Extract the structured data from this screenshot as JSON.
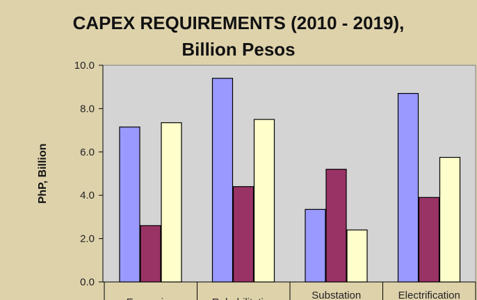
{
  "chart_data": {
    "type": "bar",
    "title": [
      "CAPEX REQUIREMENTS (2010 - 2019),",
      "Billion Pesos"
    ],
    "ylabel": "PhP, Billion",
    "xlabel": "",
    "ylim": [
      0,
      10
    ],
    "yticks": [
      "0.0",
      "2.0",
      "4.0",
      "6.0",
      "8.0",
      "10.0"
    ],
    "categories": [
      "Expansion",
      "Rehabilitation",
      "Substation",
      "Electrification"
    ],
    "series": [
      {
        "values": [
          7.15,
          9.4,
          3.35,
          8.7
        ],
        "color": "#9999ff"
      },
      {
        "values": [
          2.6,
          4.4,
          5.2,
          3.9
        ],
        "color": "#993366"
      },
      {
        "values": [
          7.35,
          7.5,
          2.4,
          5.75
        ],
        "color": "#ffffcc"
      }
    ],
    "plot_background": "#d4d4d4",
    "grid": false,
    "legend": "none"
  }
}
